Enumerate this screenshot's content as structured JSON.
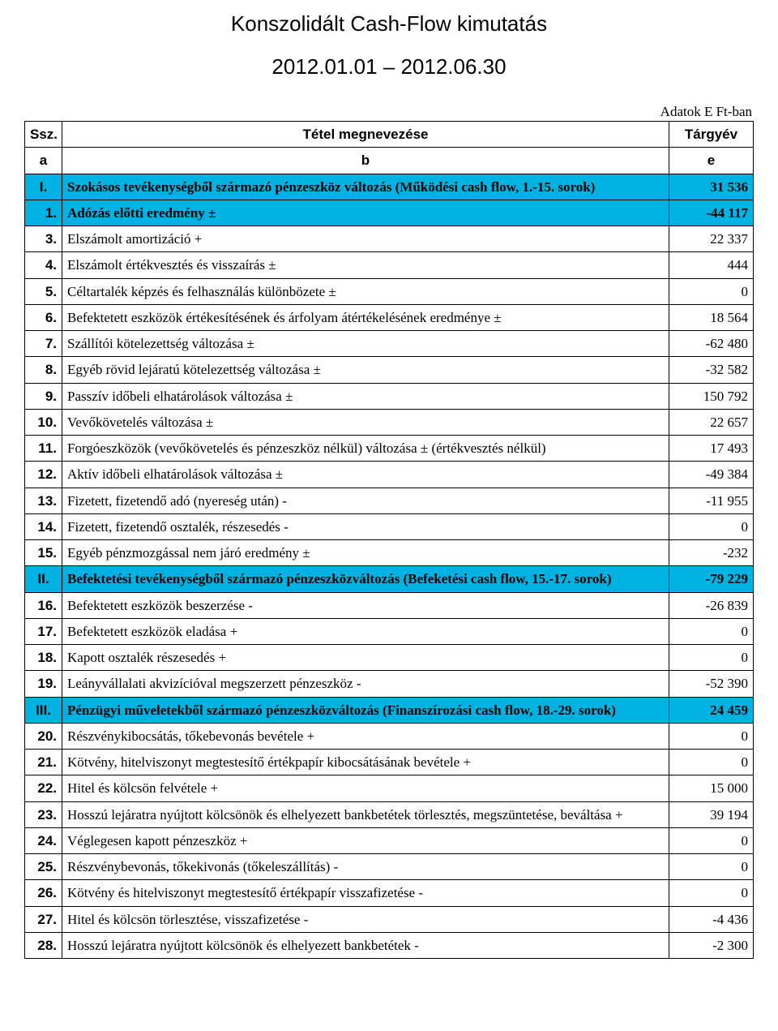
{
  "title": "Konszolidált Cash-Flow kimutatás",
  "subtitle": "2012.01.01 – 2012.06.30",
  "unit_note": "Adatok E Ft-ban",
  "headers": {
    "ssz": "Ssz.",
    "desc": "Tétel megnevezése",
    "val": "Tárgyév"
  },
  "subheaders": {
    "ssz": "a",
    "desc": "b",
    "val": "e"
  },
  "highlight_color": "#00b2e2",
  "rows": [
    {
      "n": "I.",
      "roman": true,
      "hl": true,
      "desc": "Szokásos tevékenységből származó pénzeszköz változás  (Működési cash flow, 1.-15. sorok)",
      "val": "31 536"
    },
    {
      "n": "1.",
      "hl": true,
      "desc": "Adózás előtti eredmény ±",
      "val": "-44 117"
    },
    {
      "n": "3.",
      "desc": "Elszámolt amortizáció +",
      "val": "22 337"
    },
    {
      "n": "4.",
      "desc": "Elszámolt értékvesztés és visszaírás ±",
      "val": "444"
    },
    {
      "n": "5.",
      "desc": "Céltartalék képzés és felhasználás különbözete ±",
      "val": "0"
    },
    {
      "n": "6.",
      "desc": "Befektetett eszközök értékesítésének és árfolyam átértékelésének eredménye ±",
      "val": "18 564"
    },
    {
      "n": "7.",
      "desc": "Szállítói kötelezettség változása ±",
      "val": "-62 480"
    },
    {
      "n": "8.",
      "desc": "Egyéb rövid lejáratú kötelezettség változása  ±",
      "val": "-32 582"
    },
    {
      "n": "9.",
      "desc": "Passzív időbeli elhatárolások változása ±",
      "val": "150 792"
    },
    {
      "n": "10.",
      "desc": "Vevőkövetelés változása ±",
      "val": "22 657"
    },
    {
      "n": "11.",
      "desc": "Forgóeszközök (vevőkövetelés és pénzeszköz nélkül) változása ± (értékvesztés nélkül)",
      "val": "17 493"
    },
    {
      "n": "12.",
      "desc": "Aktív időbeli elhatárolások változása ±",
      "val": "-49 384"
    },
    {
      "n": "13.",
      "desc": "Fizetett, fizetendő adó (nyereség után) -",
      "val": "-11 955"
    },
    {
      "n": "14.",
      "desc": "Fizetett, fizetendő osztalék, részesedés -",
      "val": "0"
    },
    {
      "n": "15.",
      "desc": "Egyéb pénzmozgással nem járó eredmény  ±",
      "val": "-232"
    },
    {
      "n": "II.",
      "roman": true,
      "hl": true,
      "desc": "Befektetési tevékenységből származó pénzeszközváltozás (Befeketési cash flow, 15.-17. sorok)",
      "val": "-79 229"
    },
    {
      "n": "16.",
      "desc": "Befektetett eszközök beszerzése -",
      "val": "-26 839"
    },
    {
      "n": "17.",
      "desc": "Befektetett eszközök eladása +",
      "val": "0"
    },
    {
      "n": "18.",
      "desc": "Kapott osztalék részesedés +",
      "val": "0"
    },
    {
      "n": "19.",
      "desc": "Leányvállalati akvizícióval megszerzett pénzeszköz -",
      "val": "-52 390"
    },
    {
      "n": "III.",
      "roman": true,
      "hl": true,
      "desc": "Pénzügyi műveletekből származó pénzeszközváltozás (Finanszírozási cash flow, 18.-29. sorok)",
      "val": "24 459"
    },
    {
      "n": "20.",
      "desc": "Részvénykibocsátás, tőkebevonás bevétele +",
      "val": "0"
    },
    {
      "n": "21.",
      "desc": "Kötvény, hitelviszonyt megtestesítő értékpapír kibocsátásának bevétele +",
      "val": "0"
    },
    {
      "n": "22.",
      "desc": "Hitel és kölcsön felvétele +",
      "val": "15 000"
    },
    {
      "n": "23.",
      "desc": "Hosszú lejáratra nyújtott kölcsönök és elhelyezett bankbetétek törlesztés, megszüntetése, beváltása +",
      "val": "39 194"
    },
    {
      "n": "24.",
      "desc": "Véglegesen kapott pénzeszköz +",
      "val": "0"
    },
    {
      "n": "25.",
      "desc": "Részvénybevonás, tőkekivonás (tőkeleszállítás) -",
      "val": "0"
    },
    {
      "n": "26.",
      "desc": "Kötvény és hitelviszonyt megtestesítő értékpapír visszafizetése -",
      "val": "0"
    },
    {
      "n": "27.",
      "desc": "Hitel és kölcsön törlesztése, visszafizetése -",
      "val": "-4 436"
    },
    {
      "n": "28.",
      "desc": "Hosszú lejáratra nyújtott kölcsönök és elhelyezett bankbetétek -",
      "val": "-2 300"
    }
  ]
}
